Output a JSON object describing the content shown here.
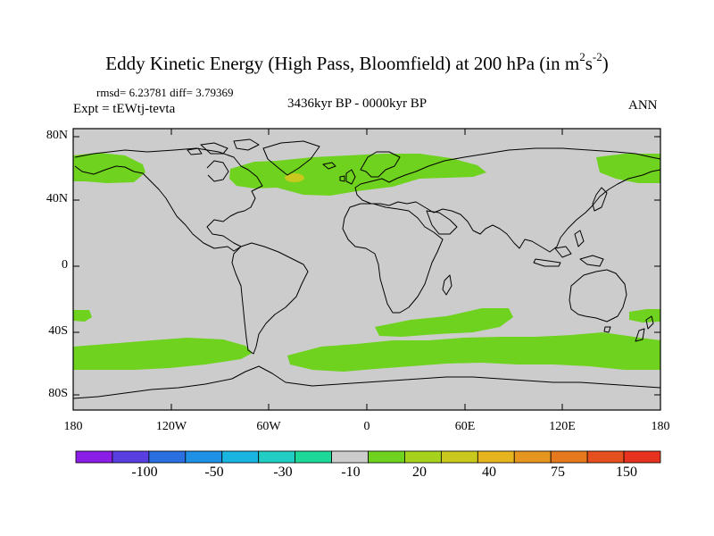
{
  "title": {
    "main": "Eddy Kinetic Energy (High Pass, Bloomfield) at 200 hPa (in m",
    "sup1": "2",
    "mid": "s",
    "sup2": "-2",
    "close": ")"
  },
  "stats": "rmsd= 6.23781 diff= 3.79369",
  "expt": "Expt = tEWtj-tevta",
  "period": "3436kyr BP - 0000kyr BP",
  "season": "ANN",
  "lat_labels": [
    "80N",
    "40N",
    "0",
    "40S",
    "80S"
  ],
  "lon_labels": [
    "180",
    "120W",
    "60W",
    "0",
    "60E",
    "120E",
    "180"
  ],
  "colorbar": {
    "labels": [
      "-100",
      "-50",
      "-30",
      "-10",
      "20",
      "40",
      "75",
      "150"
    ],
    "colors": [
      "#8a1ee6",
      "#5a3fe0",
      "#2a6fe0",
      "#1e90e6",
      "#19b4e0",
      "#22cdc4",
      "#1ed89a",
      "#cccccc",
      "#6ed21e",
      "#a6d21e",
      "#c8c81e",
      "#e6b41e",
      "#e6961e",
      "#e6781e",
      "#e6501e",
      "#e6321e"
    ]
  },
  "colors": {
    "land_background": "#cccccc",
    "positive_anomaly": "#6ed21e",
    "strong_anomaly": "#c8c81e"
  }
}
